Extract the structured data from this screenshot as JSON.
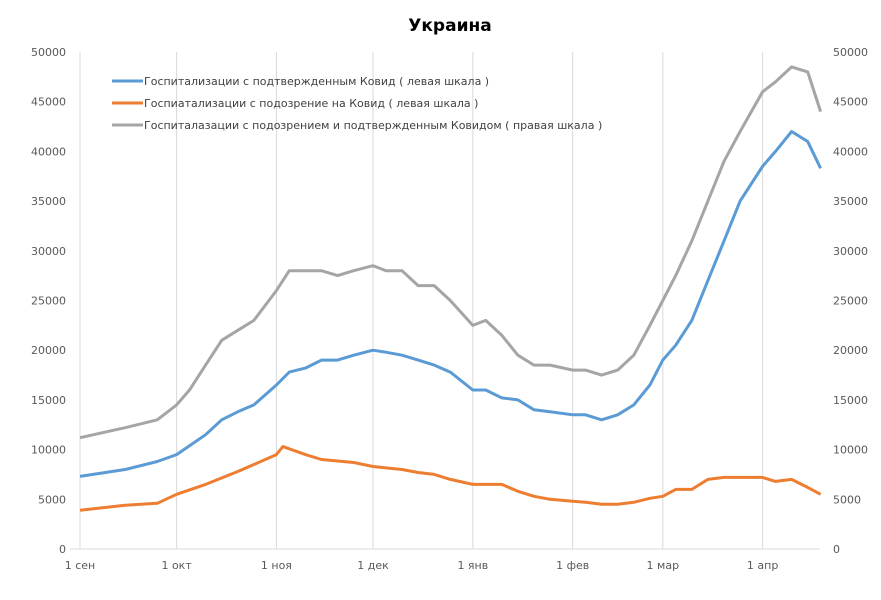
{
  "chart_data": {
    "type": "line",
    "title": "Украина",
    "xlabel": "",
    "ylabel": "",
    "ylim": [
      0,
      50000
    ],
    "y2lim": [
      0,
      50000
    ],
    "yticks": [
      "0",
      "5000",
      "10000",
      "15000",
      "20000",
      "25000",
      "30000",
      "35000",
      "40000",
      "45000",
      "50000"
    ],
    "xticks": [
      {
        "label": "1 сен",
        "date": "09-01"
      },
      {
        "label": "1 окт",
        "date": "10-01"
      },
      {
        "label": "1 ноя",
        "date": "11-01"
      },
      {
        "label": "1 дек",
        "date": "12-01"
      },
      {
        "label": "1 янв",
        "date": "01-01"
      },
      {
        "label": "1 фев",
        "date": "02-01"
      },
      {
        "label": "1 мар",
        "date": "03-01"
      },
      {
        "label": "1 апр",
        "date": "04-01"
      }
    ],
    "grid": "vertical",
    "legend_position": "top-left",
    "series": [
      {
        "name": "Госпитализации с подтвержденным Ковид ( левая шкала )",
        "color": "#5b9bd5",
        "axis": "left",
        "x": [
          "09-01",
          "09-15",
          "09-25",
          "10-01",
          "10-10",
          "10-15",
          "10-20",
          "10-25",
          "11-01",
          "11-05",
          "11-10",
          "11-15",
          "11-20",
          "11-25",
          "12-01",
          "12-05",
          "12-10",
          "12-15",
          "12-20",
          "12-25",
          "01-01",
          "01-05",
          "01-10",
          "01-15",
          "01-20",
          "01-25",
          "02-01",
          "02-05",
          "02-10",
          "02-15",
          "02-20",
          "02-25",
          "03-01",
          "03-05",
          "03-10",
          "03-15",
          "03-20",
          "03-25",
          "04-01",
          "04-05",
          "04-10",
          "04-15",
          "04-19"
        ],
        "values": [
          7300,
          8000,
          8800,
          9500,
          11500,
          13000,
          13800,
          14500,
          16500,
          17800,
          18200,
          19000,
          19000,
          19500,
          20000,
          19800,
          19500,
          19000,
          18500,
          17800,
          16000,
          16000,
          15200,
          15000,
          14000,
          13800,
          13500,
          13500,
          13000,
          13500,
          14500,
          16500,
          19000,
          20500,
          23000,
          27000,
          31000,
          35000,
          38500,
          40000,
          42000,
          41000,
          38300
        ]
      },
      {
        "name": "Госпиатализации с подозрение на Ковид ( левая шкала )",
        "color": "#ed7d31",
        "axis": "left",
        "x": [
          "09-01",
          "09-15",
          "09-25",
          "10-01",
          "10-10",
          "10-20",
          "10-25",
          "11-01",
          "11-03",
          "11-10",
          "11-15",
          "11-25",
          "12-01",
          "12-10",
          "12-15",
          "12-20",
          "12-25",
          "01-01",
          "01-10",
          "01-15",
          "01-20",
          "01-25",
          "02-01",
          "02-05",
          "02-10",
          "02-15",
          "02-20",
          "02-25",
          "03-01",
          "03-05",
          "03-10",
          "03-15",
          "03-20",
          "03-25",
          "04-01",
          "04-05",
          "04-10",
          "04-15",
          "04-19"
        ],
        "values": [
          3900,
          4400,
          4600,
          5500,
          6500,
          7800,
          8500,
          9500,
          10300,
          9500,
          9000,
          8700,
          8300,
          8000,
          7700,
          7500,
          7000,
          6500,
          6500,
          5800,
          5300,
          5000,
          4800,
          4700,
          4500,
          4500,
          4700,
          5100,
          5300,
          6000,
          6000,
          7000,
          7200,
          7200,
          7200,
          6800,
          7000,
          6200,
          5500
        ]
      },
      {
        "name": "Госпиталазации с подозрением и подтвержденным Ковидом ( правая шкала )",
        "color": "#a5a5a5",
        "axis": "right",
        "x": [
          "09-01",
          "09-15",
          "09-25",
          "10-01",
          "10-05",
          "10-10",
          "10-15",
          "10-20",
          "10-25",
          "11-01",
          "11-05",
          "11-10",
          "11-15",
          "11-20",
          "11-25",
          "12-01",
          "12-05",
          "12-10",
          "12-15",
          "12-20",
          "12-25",
          "01-01",
          "01-05",
          "01-10",
          "01-15",
          "01-20",
          "01-25",
          "02-01",
          "02-05",
          "02-10",
          "02-15",
          "02-20",
          "02-25",
          "03-01",
          "03-05",
          "03-10",
          "03-15",
          "03-20",
          "03-25",
          "04-01",
          "04-05",
          "04-10",
          "04-15",
          "04-19"
        ],
        "values": [
          11200,
          12200,
          13000,
          14500,
          16000,
          18500,
          21000,
          22000,
          23000,
          26000,
          28000,
          28000,
          28000,
          27500,
          28000,
          28500,
          28000,
          28000,
          26500,
          26500,
          25000,
          22500,
          23000,
          21500,
          19500,
          18500,
          18500,
          18000,
          18000,
          17500,
          18000,
          19500,
          22500,
          25000,
          27500,
          31000,
          35000,
          39000,
          42000,
          46000,
          47000,
          48500,
          48000,
          44000
        ]
      }
    ]
  }
}
